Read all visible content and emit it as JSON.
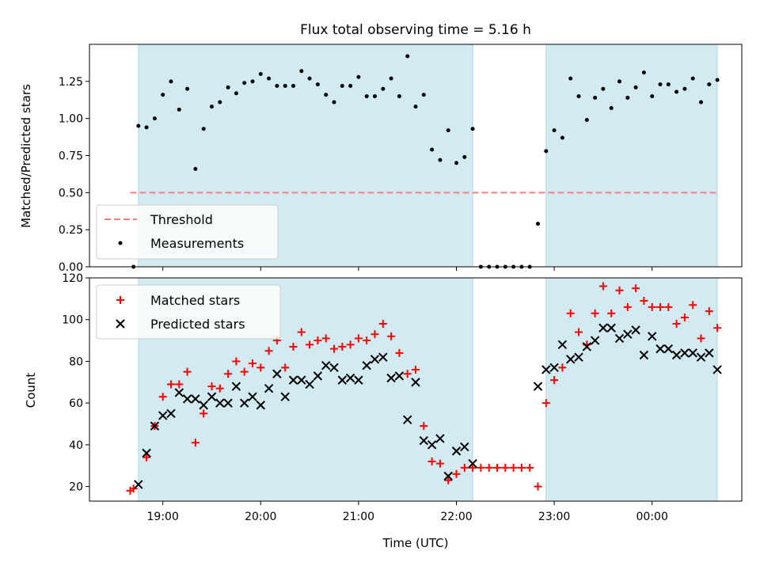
{
  "colors": {
    "shade": "#add8e6",
    "threshold": "#f08080",
    "measurement": "#000000",
    "matched": "#ff0000",
    "predicted": "#000000"
  },
  "x_axis": {
    "label": "Time (UTC)",
    "range": [
      "18:15",
      "00:55"
    ],
    "ticks": [
      {
        "t": "19:00",
        "label": "19:00"
      },
      {
        "t": "20:00",
        "label": "20:00"
      },
      {
        "t": "21:00",
        "label": "21:00"
      },
      {
        "t": "22:00",
        "label": "22:00"
      },
      {
        "t": "23:00",
        "label": "23:00"
      },
      {
        "t": "00:00",
        "label": "00:00"
      }
    ]
  },
  "chart_data": [
    {
      "type": "scatter",
      "title": "Flux total observing time = 5.16 h",
      "xlabel": "",
      "ylabel": "Matched/Predicted stars",
      "ylim": [
        0,
        1.5
      ],
      "yticks": [
        "0.00",
        "0.25",
        "0.50",
        "0.75",
        "1.00",
        "1.25"
      ],
      "legend": {
        "location": "lower-left",
        "entries": [
          "Threshold",
          "Measurements"
        ]
      },
      "shaded_intervals": [
        [
          "18:45",
          "22:10"
        ],
        [
          "22:55",
          "00:40"
        ]
      ],
      "threshold": {
        "name": "Threshold",
        "value": 0.5,
        "x_range": [
          "18:40",
          "00:40"
        ]
      },
      "series": [
        {
          "name": "Measurements",
          "marker": "dot",
          "points": [
            [
              "18:42",
              0.0
            ],
            [
              "18:45",
              0.95
            ],
            [
              "18:50",
              0.94
            ],
            [
              "18:55",
              1.0
            ],
            [
              "19:00",
              1.16
            ],
            [
              "19:05",
              1.25
            ],
            [
              "19:10",
              1.06
            ],
            [
              "19:15",
              1.2
            ],
            [
              "19:20",
              0.66
            ],
            [
              "19:25",
              0.93
            ],
            [
              "19:30",
              1.08
            ],
            [
              "19:35",
              1.11
            ],
            [
              "19:40",
              1.21
            ],
            [
              "19:45",
              1.17
            ],
            [
              "19:50",
              1.24
            ],
            [
              "19:55",
              1.25
            ],
            [
              "20:00",
              1.3
            ],
            [
              "20:05",
              1.27
            ],
            [
              "20:10",
              1.22
            ],
            [
              "20:15",
              1.22
            ],
            [
              "20:20",
              1.22
            ],
            [
              "20:25",
              1.32
            ],
            [
              "20:30",
              1.27
            ],
            [
              "20:35",
              1.23
            ],
            [
              "20:40",
              1.16
            ],
            [
              "20:45",
              1.11
            ],
            [
              "20:50",
              1.22
            ],
            [
              "20:55",
              1.22
            ],
            [
              "21:00",
              1.28
            ],
            [
              "21:05",
              1.15
            ],
            [
              "21:10",
              1.15
            ],
            [
              "21:15",
              1.2
            ],
            [
              "21:20",
              1.27
            ],
            [
              "21:25",
              1.15
            ],
            [
              "21:30",
              1.42
            ],
            [
              "21:35",
              1.08
            ],
            [
              "21:40",
              1.16
            ],
            [
              "21:45",
              0.79
            ],
            [
              "21:50",
              0.72
            ],
            [
              "21:55",
              0.92
            ],
            [
              "22:00",
              0.7
            ],
            [
              "22:05",
              0.74
            ],
            [
              "22:10",
              0.93
            ],
            [
              "22:15",
              0.0
            ],
            [
              "22:20",
              0.0
            ],
            [
              "22:25",
              0.0
            ],
            [
              "22:30",
              0.0
            ],
            [
              "22:35",
              0.0
            ],
            [
              "22:40",
              0.0
            ],
            [
              "22:45",
              0.0
            ],
            [
              "22:50",
              0.29
            ],
            [
              "22:55",
              0.78
            ],
            [
              "23:00",
              0.92
            ],
            [
              "23:05",
              0.87
            ],
            [
              "23:10",
              1.27
            ],
            [
              "23:15",
              1.15
            ],
            [
              "23:20",
              0.99
            ],
            [
              "23:25",
              1.14
            ],
            [
              "23:30",
              1.2
            ],
            [
              "23:35",
              1.07
            ],
            [
              "23:40",
              1.25
            ],
            [
              "23:45",
              1.14
            ],
            [
              "23:50",
              1.21
            ],
            [
              "23:55",
              1.31
            ],
            [
              "00:00",
              1.15
            ],
            [
              "00:05",
              1.23
            ],
            [
              "00:10",
              1.23
            ],
            [
              "00:15",
              1.18
            ],
            [
              "00:20",
              1.2
            ],
            [
              "00:25",
              1.27
            ],
            [
              "00:30",
              1.11
            ],
            [
              "00:35",
              1.23
            ],
            [
              "00:40",
              1.26
            ]
          ]
        }
      ]
    },
    {
      "type": "scatter",
      "title": "",
      "xlabel": "Time (UTC)",
      "ylabel": "Count",
      "ylim": [
        13,
        120
      ],
      "yticks": [
        "20",
        "40",
        "60",
        "80",
        "100",
        "120"
      ],
      "legend": {
        "location": "upper-left",
        "entries": [
          "Matched stars",
          "Predicted stars"
        ]
      },
      "shaded_intervals": [
        [
          "18:45",
          "22:10"
        ],
        [
          "22:55",
          "00:40"
        ]
      ],
      "series": [
        {
          "name": "Matched stars",
          "marker": "plus",
          "points": [
            [
              "18:40",
              18
            ],
            [
              "18:42",
              19
            ],
            [
              "18:50",
              34
            ],
            [
              "18:55",
              49
            ],
            [
              "19:00",
              63
            ],
            [
              "19:05",
              69
            ],
            [
              "19:10",
              69
            ],
            [
              "19:15",
              75
            ],
            [
              "19:20",
              41
            ],
            [
              "19:25",
              55
            ],
            [
              "19:30",
              68
            ],
            [
              "19:35",
              67
            ],
            [
              "19:40",
              74
            ],
            [
              "19:45",
              80
            ],
            [
              "19:50",
              75
            ],
            [
              "19:55",
              79
            ],
            [
              "20:00",
              77
            ],
            [
              "20:05",
              85
            ],
            [
              "20:10",
              90
            ],
            [
              "20:15",
              77
            ],
            [
              "20:20",
              87
            ],
            [
              "20:25",
              94
            ],
            [
              "20:30",
              88
            ],
            [
              "20:35",
              90
            ],
            [
              "20:40",
              91
            ],
            [
              "20:45",
              86
            ],
            [
              "20:50",
              87
            ],
            [
              "20:55",
              88
            ],
            [
              "21:00",
              91
            ],
            [
              "21:05",
              90
            ],
            [
              "21:10",
              93
            ],
            [
              "21:15",
              98
            ],
            [
              "21:20",
              92
            ],
            [
              "21:25",
              84
            ],
            [
              "21:30",
              74
            ],
            [
              "21:35",
              76
            ],
            [
              "21:40",
              49
            ],
            [
              "21:45",
              32
            ],
            [
              "21:50",
              31
            ],
            [
              "21:55",
              23
            ],
            [
              "22:00",
              26
            ],
            [
              "22:05",
              29
            ],
            [
              "22:10",
              29
            ],
            [
              "22:15",
              29
            ],
            [
              "22:20",
              29
            ],
            [
              "22:25",
              29
            ],
            [
              "22:30",
              29
            ],
            [
              "22:35",
              29
            ],
            [
              "22:40",
              29
            ],
            [
              "22:45",
              29
            ],
            [
              "22:50",
              20
            ],
            [
              "22:55",
              60
            ],
            [
              "23:00",
              71
            ],
            [
              "23:05",
              77
            ],
            [
              "23:10",
              103
            ],
            [
              "23:15",
              94
            ],
            [
              "23:20",
              88
            ],
            [
              "23:25",
              103
            ],
            [
              "23:30",
              116
            ],
            [
              "23:35",
              103
            ],
            [
              "23:40",
              114
            ],
            [
              "23:45",
              106
            ],
            [
              "23:50",
              115
            ],
            [
              "23:55",
              109
            ],
            [
              "00:00",
              106
            ],
            [
              "00:05",
              106
            ],
            [
              "00:10",
              106
            ],
            [
              "00:15",
              98
            ],
            [
              "00:20",
              101
            ],
            [
              "00:25",
              107
            ],
            [
              "00:30",
              91
            ],
            [
              "00:35",
              104
            ],
            [
              "00:40",
              96
            ]
          ]
        },
        {
          "name": "Predicted stars",
          "marker": "cross",
          "points": [
            [
              "18:45",
              21
            ],
            [
              "18:50",
              36
            ],
            [
              "18:55",
              49
            ],
            [
              "19:00",
              54
            ],
            [
              "19:05",
              55
            ],
            [
              "19:10",
              65
            ],
            [
              "19:15",
              62
            ],
            [
              "19:20",
              62
            ],
            [
              "19:25",
              59
            ],
            [
              "19:30",
              63
            ],
            [
              "19:35",
              60
            ],
            [
              "19:40",
              60
            ],
            [
              "19:45",
              68
            ],
            [
              "19:50",
              60
            ],
            [
              "19:55",
              63
            ],
            [
              "20:00",
              59
            ],
            [
              "20:05",
              67
            ],
            [
              "20:10",
              74
            ],
            [
              "20:15",
              63
            ],
            [
              "20:20",
              71
            ],
            [
              "20:25",
              71
            ],
            [
              "20:30",
              69
            ],
            [
              "20:35",
              73
            ],
            [
              "20:40",
              78
            ],
            [
              "20:45",
              77
            ],
            [
              "20:50",
              71
            ],
            [
              "20:55",
              72
            ],
            [
              "21:00",
              71
            ],
            [
              "21:05",
              78
            ],
            [
              "21:10",
              81
            ],
            [
              "21:15",
              82
            ],
            [
              "21:20",
              72
            ],
            [
              "21:25",
              73
            ],
            [
              "21:30",
              52
            ],
            [
              "21:35",
              70
            ],
            [
              "21:40",
              42
            ],
            [
              "21:45",
              40
            ],
            [
              "21:50",
              43
            ],
            [
              "21:55",
              25
            ],
            [
              "22:00",
              37
            ],
            [
              "22:05",
              39
            ],
            [
              "22:10",
              31
            ],
            [
              "22:50",
              68
            ],
            [
              "22:55",
              76
            ],
            [
              "23:00",
              77
            ],
            [
              "23:05",
              88
            ],
            [
              "23:10",
              81
            ],
            [
              "23:15",
              82
            ],
            [
              "23:20",
              87
            ],
            [
              "23:25",
              90
            ],
            [
              "23:30",
              96
            ],
            [
              "23:35",
              96
            ],
            [
              "23:40",
              91
            ],
            [
              "23:45",
              93
            ],
            [
              "23:50",
              95
            ],
            [
              "23:55",
              83
            ],
            [
              "00:00",
              92
            ],
            [
              "00:05",
              86
            ],
            [
              "00:10",
              86
            ],
            [
              "00:15",
              83
            ],
            [
              "00:20",
              84
            ],
            [
              "00:25",
              84
            ],
            [
              "00:30",
              82
            ],
            [
              "00:35",
              84
            ],
            [
              "00:40",
              76
            ]
          ]
        }
      ]
    }
  ]
}
